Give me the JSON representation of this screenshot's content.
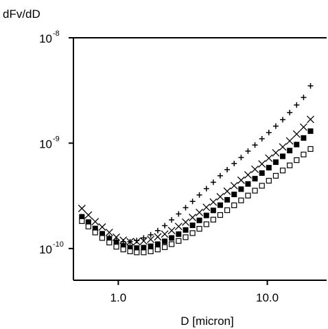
{
  "chart_data": {
    "type": "scatter",
    "title": "",
    "xlabel": "D [micron]",
    "ylabel": "dFv/dD",
    "xscale": "log",
    "yscale": "log",
    "xlim": [
      0.5,
      25
    ],
    "ylim": [
      5e-11,
      1e-08
    ],
    "x_ticks": [
      {
        "value": 1.0,
        "label": "1.0"
      },
      {
        "value": 10.0,
        "label": "10.0"
      }
    ],
    "y_ticks": [
      {
        "value": 1e-10,
        "base": "10",
        "exp": "-10"
      },
      {
        "value": 1e-09,
        "base": "10",
        "exp": "-9"
      },
      {
        "value": 1e-08,
        "base": "10",
        "exp": "-8"
      }
    ],
    "grid": false,
    "legend": "none",
    "x": [
      0.57,
      0.63,
      0.7,
      0.78,
      0.87,
      0.97,
      1.08,
      1.2,
      1.33,
      1.48,
      1.65,
      1.84,
      2.05,
      2.28,
      2.54,
      2.83,
      3.15,
      3.5,
      3.9,
      4.34,
      4.83,
      5.38,
      5.99,
      6.67,
      7.42,
      8.26,
      9.2,
      10.24,
      11.4,
      12.69,
      14.13,
      15.73,
      17.51,
      19.49
    ],
    "series": [
      {
        "marker": "plus",
        "values": [
          2e-10,
          1.72e-10,
          1.5e-10,
          1.38e-10,
          1.28e-10,
          1.2e-10,
          1.16e-10,
          1.16e-10,
          1.19e-10,
          1.26e-10,
          1.35e-10,
          1.48e-10,
          1.65e-10,
          1.87e-10,
          2.13e-10,
          2.44e-10,
          2.8e-10,
          3.22e-10,
          3.7e-10,
          4.25e-10,
          4.9e-10,
          5.6e-10,
          6.4e-10,
          7.3e-10,
          8.4e-10,
          9.6e-10,
          1.1e-09,
          1.26e-09,
          1.45e-09,
          1.67e-09,
          1.95e-09,
          2.3e-09,
          2.72e-09,
          3.5e-09
        ]
      },
      {
        "marker": "x",
        "values": [
          2.4e-10,
          2.08e-10,
          1.8e-10,
          1.6e-10,
          1.42e-10,
          1.28e-10,
          1.2e-10,
          1.16e-10,
          1.16e-10,
          1.18e-10,
          1.22e-10,
          1.29e-10,
          1.37e-10,
          1.48e-10,
          1.62e-10,
          1.78e-10,
          1.97e-10,
          2.2e-10,
          2.46e-10,
          2.76e-10,
          3.1e-10,
          3.5e-10,
          3.95e-10,
          4.45e-10,
          5e-10,
          5.65e-10,
          6.35e-10,
          7.2e-10,
          8.1e-10,
          9.2e-10,
          1.05e-09,
          1.22e-09,
          1.42e-09,
          1.68e-09
        ]
      },
      {
        "marker": "filled-square",
        "values": [
          2e-10,
          1.78e-10,
          1.55e-10,
          1.38e-10,
          1.24e-10,
          1.12e-10,
          1.06e-10,
          1.02e-10,
          1.01e-10,
          1.02e-10,
          1.05e-10,
          1.1e-10,
          1.17e-10,
          1.26e-10,
          1.37e-10,
          1.5e-10,
          1.66e-10,
          1.85e-10,
          2.06e-10,
          2.3e-10,
          2.58e-10,
          2.9e-10,
          3.26e-10,
          3.66e-10,
          4.1e-10,
          4.6e-10,
          5.2e-10,
          5.85e-10,
          6.6e-10,
          7.5e-10,
          8.5e-10,
          9.7e-10,
          1.12e-09,
          1.3e-09
        ]
      },
      {
        "marker": "open-square",
        "values": [
          1.82e-10,
          1.62e-10,
          1.42e-10,
          1.26e-10,
          1.14e-10,
          1.04e-10,
          9.8e-11,
          9.4e-11,
          9.2e-11,
          9.2e-11,
          9.4e-11,
          9.8e-11,
          1.03e-10,
          1.1e-10,
          1.18e-10,
          1.28e-10,
          1.4e-10,
          1.54e-10,
          1.7e-10,
          1.88e-10,
          2.08e-10,
          2.31e-10,
          2.57e-10,
          2.86e-10,
          3.18e-10,
          3.54e-10,
          3.94e-10,
          4.4e-10,
          4.9e-10,
          5.5e-10,
          6.15e-10,
          6.9e-10,
          7.8e-10,
          8.8e-10
        ]
      }
    ]
  }
}
